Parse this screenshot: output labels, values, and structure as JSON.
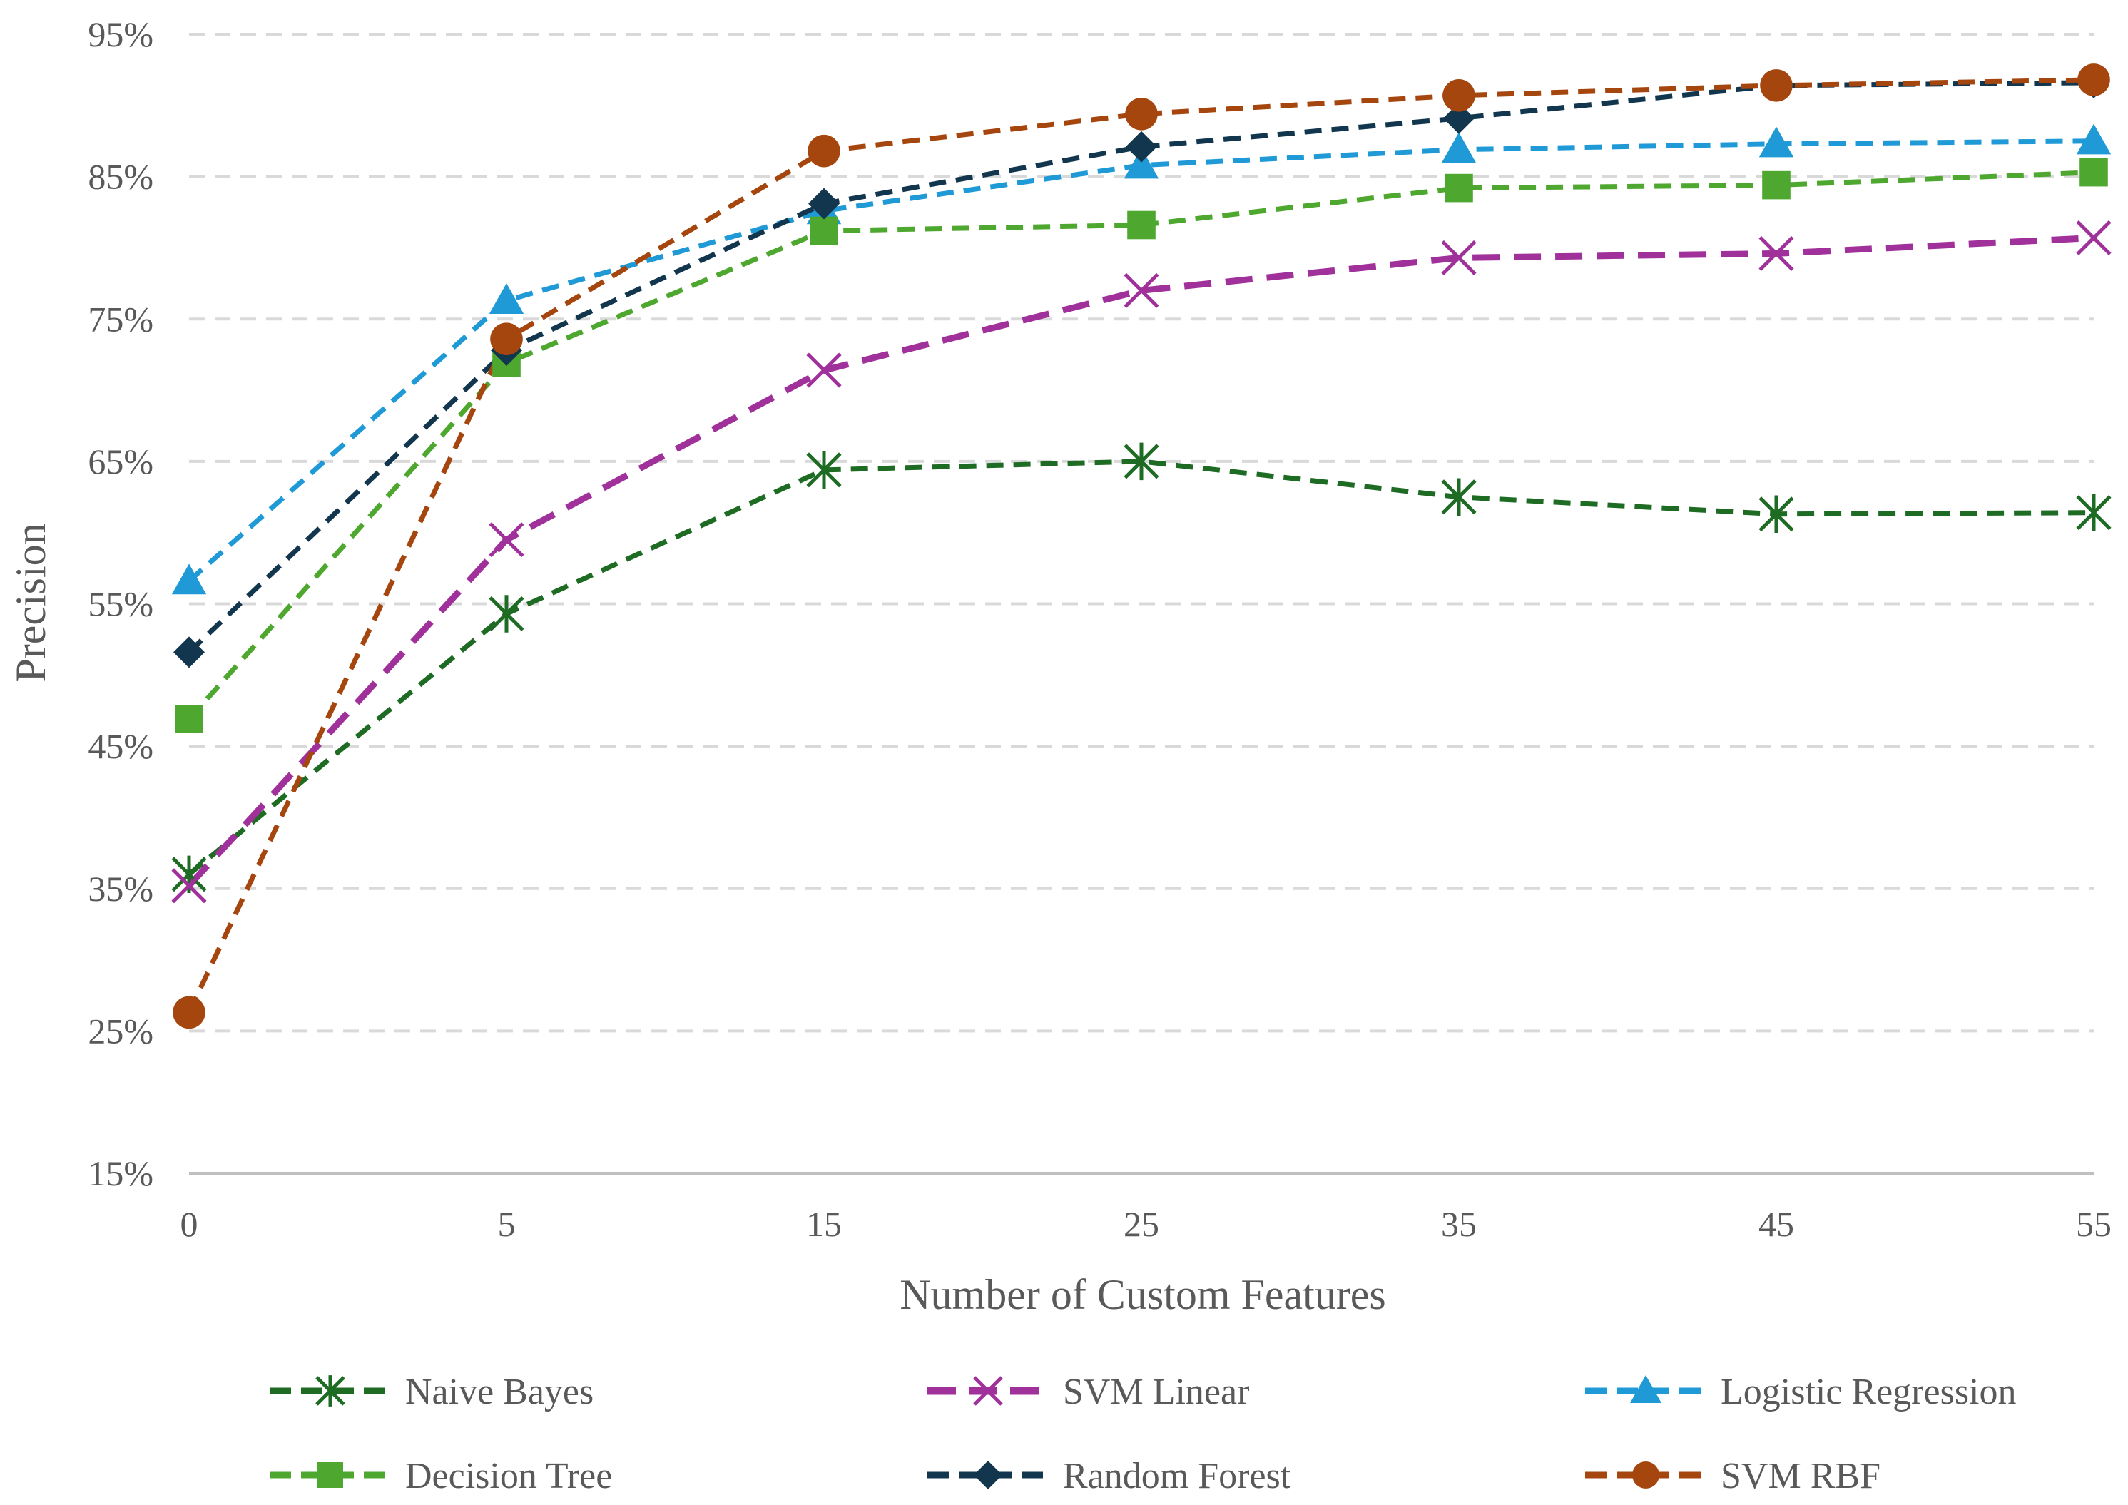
{
  "chart_data": {
    "type": "line",
    "title": "",
    "xlabel": "Number of Custom Features",
    "ylabel": "Precision",
    "x": [
      0,
      5,
      15,
      25,
      35,
      45,
      55
    ],
    "x_tick_labels": [
      "0",
      "5",
      "15",
      "25",
      "35",
      "45",
      "55"
    ],
    "ylim": [
      15,
      95
    ],
    "y_ticks": [
      15,
      25,
      35,
      45,
      55,
      65,
      75,
      85,
      95
    ],
    "y_tick_labels": [
      "15%",
      "25%",
      "35%",
      "45%",
      "55%",
      "65%",
      "75%",
      "85%",
      "95%"
    ],
    "grid": true,
    "legend_position": "bottom",
    "series": [
      {
        "name": "Naive Bayes",
        "color": "#1e6b24",
        "marker": "asterisk",
        "dash": "dashed",
        "values": [
          36.0,
          54.3,
          64.4,
          65.0,
          62.5,
          61.3,
          61.4
        ]
      },
      {
        "name": "SVM Linear",
        "color": "#a0309a",
        "marker": "x",
        "dash": "long-dashed",
        "values": [
          35.2,
          59.5,
          71.4,
          77.0,
          79.3,
          79.6,
          80.7
        ]
      },
      {
        "name": "Logistic Regression",
        "color": "#1f9ad6",
        "marker": "triangle",
        "dash": "dashed",
        "values": [
          56.6,
          76.3,
          82.6,
          85.8,
          86.9,
          87.3,
          87.5
        ]
      },
      {
        "name": "Decision Tree",
        "color": "#4ea72e",
        "marker": "square",
        "dash": "dashed",
        "values": [
          46.9,
          71.9,
          81.2,
          81.6,
          84.2,
          84.4,
          85.3
        ]
      },
      {
        "name": "Random Forest",
        "color": "#11364d",
        "marker": "diamond",
        "dash": "dashed",
        "values": [
          51.6,
          72.8,
          83.1,
          87.1,
          89.1,
          91.4,
          91.6
        ]
      },
      {
        "name": "SVM RBF",
        "color": "#a5460f",
        "marker": "circle",
        "dash": "dashed",
        "values": [
          26.3,
          73.6,
          86.8,
          89.4,
          90.7,
          91.4,
          91.8
        ]
      }
    ]
  }
}
